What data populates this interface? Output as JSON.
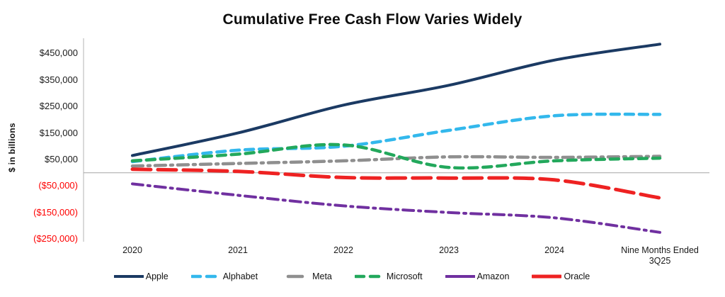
{
  "title": "Cumulative Free Cash Flow Varies Widely",
  "y_axis": {
    "label": "$ in billions",
    "tick_labels": [
      "$450,000",
      "$350,000",
      "$250,000",
      "$150,000",
      "$50,000",
      "($50,000)",
      "($150,000)",
      "($250,000)"
    ],
    "tick_values": [
      450000,
      350000,
      250000,
      150000,
      50000,
      -50000,
      -150000,
      -250000
    ],
    "positive_color": "#1a1a1a",
    "negative_color": "#fe0000"
  },
  "x_axis": {
    "tick_labels": [
      "2020",
      "2021",
      "2022",
      "2023",
      "2024",
      "Nine Months Ended\n3Q25"
    ]
  },
  "chart_data": {
    "type": "line",
    "title": "Cumulative Free Cash Flow Varies Widely",
    "xlabel": "",
    "ylabel": "$ in billions",
    "ylim": [
      -260000,
      510000
    ],
    "grid": false,
    "legend_position": "bottom",
    "categories": [
      "2020",
      "2021",
      "2022",
      "2023",
      "2024",
      "Nine Months Ended 3Q25"
    ],
    "series": [
      {
        "name": "Apple",
        "color": "#1b3a63",
        "style": "solid",
        "values": [
          65000,
          150000,
          255000,
          330000,
          425000,
          485000
        ]
      },
      {
        "name": "Alphabet",
        "color": "#33b8ec",
        "style": "dashed",
        "values": [
          42000,
          85000,
          100000,
          160000,
          215000,
          220000
        ]
      },
      {
        "name": "Meta",
        "color": "#8f8f8f",
        "style": "dash-dot",
        "values": [
          25000,
          35000,
          45000,
          60000,
          58000,
          62000
        ]
      },
      {
        "name": "Microsoft",
        "color": "#23a85c",
        "style": "dashed",
        "values": [
          45000,
          70000,
          105000,
          20000,
          45000,
          55000
        ]
      },
      {
        "name": "Amazon",
        "color": "#7030a0",
        "style": "dash-dot",
        "values": [
          -42000,
          -85000,
          -125000,
          -150000,
          -170000,
          -225000
        ]
      },
      {
        "name": "Oracle",
        "color": "#ee2222",
        "style": "long-dash",
        "values": [
          13000,
          5000,
          -18000,
          -20000,
          -27000,
          -95000
        ]
      }
    ]
  }
}
